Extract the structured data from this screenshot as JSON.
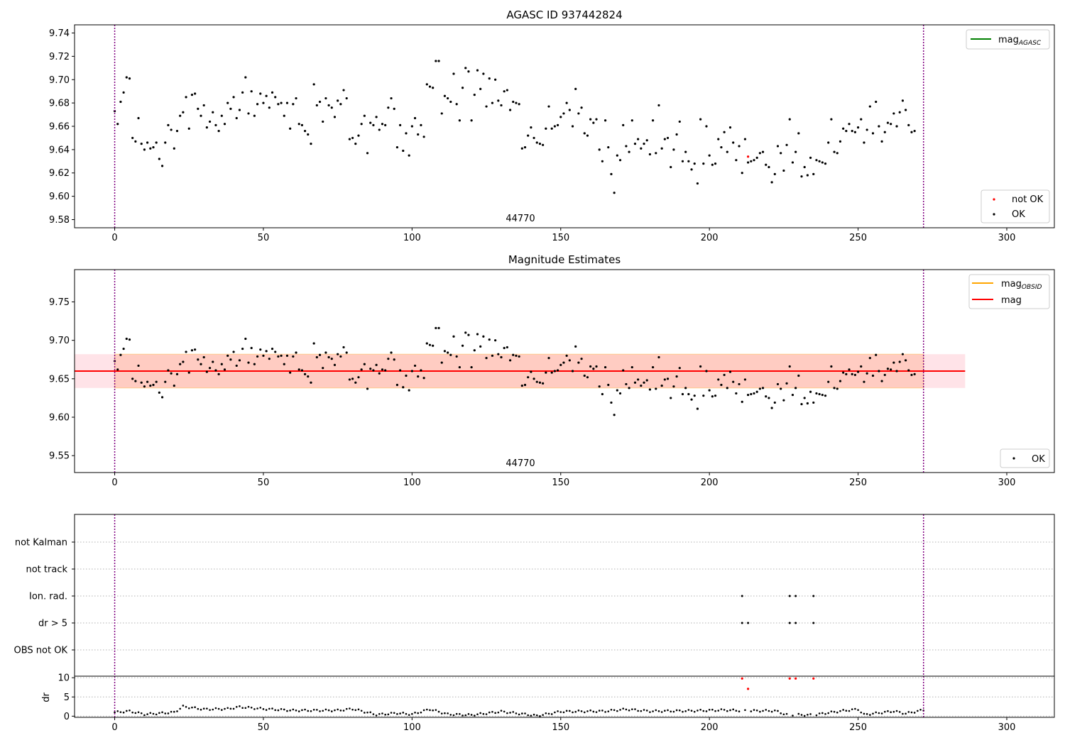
{
  "figure": {
    "panel1_title": "AGASC ID 937442824",
    "panel2_title": "Magnitude Estimates",
    "obsid_label": "44770",
    "panel3_ylabel": "dr",
    "legend_mag_agasc": "mag",
    "legend_mag_agasc_sub": "AGASC",
    "legend_not_ok": "not OK",
    "legend_ok": "OK",
    "legend_mag_obsid": "mag",
    "legend_mag_obsid_sub": "OBSID",
    "legend_mag": "mag",
    "legend_ok2": "OK"
  },
  "colors": {
    "ok": "#000000",
    "not_ok": "#ff0000",
    "mag_agasc": "#008000",
    "mag_obsid": "#ffa500",
    "mag": "#ff0000",
    "obsid_band": "#ffa07a",
    "mag_band": "#ffc0cb",
    "vline": "#800080"
  },
  "chart_data": [
    {
      "type": "scatter",
      "title": "AGASC ID 937442824",
      "xlim": [
        -13.5,
        316
      ],
      "ylim": [
        9.573,
        9.747
      ],
      "xticks": [
        0,
        50,
        100,
        150,
        200,
        250,
        300
      ],
      "yticks": [
        9.58,
        9.6,
        9.62,
        9.64,
        9.66,
        9.68,
        9.7,
        9.72,
        9.74
      ],
      "vlines": [
        0,
        272
      ],
      "annotation": {
        "text": "44770",
        "x": 136
      },
      "series": [
        {
          "name": "OK",
          "y": [
            9.673,
            9.662,
            9.681,
            9.689,
            9.702,
            9.701,
            9.65,
            9.647,
            9.667,
            9.645,
            9.64,
            9.646,
            9.641,
            9.642,
            9.646,
            9.632,
            9.626,
            9.646,
            9.661,
            9.657,
            9.641,
            9.656,
            9.669,
            9.672,
            9.685,
            9.658,
            9.687,
            9.688,
            9.675,
            9.669,
            9.678,
            9.659,
            9.664,
            9.672,
            9.661,
            9.656,
            9.669,
            9.662,
            9.68,
            9.675,
            9.685,
            9.667,
            9.674,
            9.689,
            9.702,
            9.671,
            9.69,
            9.669,
            9.679,
            9.688,
            9.68,
            9.686,
            9.676,
            9.689,
            9.685,
            9.679,
            9.68,
            9.669,
            9.68,
            9.658,
            9.679,
            9.684,
            9.662,
            9.661,
            9.656,
            9.653,
            9.645,
            9.696,
            9.678,
            9.681,
            9.664,
            9.684,
            9.678,
            9.676,
            9.668,
            9.682,
            9.679,
            9.691,
            9.684,
            9.649,
            9.65,
            9.645,
            9.652,
            9.662,
            9.669,
            9.637,
            9.663,
            9.661,
            9.668,
            9.657,
            9.662,
            9.661,
            9.676,
            9.684,
            9.675,
            9.642,
            9.661,
            9.639,
            9.654,
            9.635,
            9.66,
            9.667,
            9.653,
            9.661,
            9.651,
            9.696,
            9.694,
            9.693,
            9.716,
            9.716,
            9.671,
            9.686,
            9.684,
            9.681,
            9.705,
            9.679,
            9.665,
            9.693,
            9.71,
            9.707,
            9.665,
            9.687,
            9.708,
            9.692,
            9.705,
            9.677,
            9.701,
            9.68,
            9.7,
            9.682,
            9.678,
            9.69,
            9.691,
            9.674,
            9.681,
            9.68,
            9.679,
            9.641,
            9.642,
            9.652,
            9.659,
            9.65,
            9.646,
            9.645,
            9.644,
            9.658,
            9.677,
            9.658,
            9.66,
            9.661,
            9.668,
            9.671,
            9.68,
            9.674,
            9.66,
            9.692,
            9.671,
            9.676,
            9.654,
            9.652,
            9.666,
            9.663,
            9.666,
            9.64,
            9.63,
            9.665,
            9.642,
            9.619,
            9.603,
            9.635,
            9.631,
            9.661,
            9.643,
            9.638,
            9.665,
            9.645,
            9.649,
            9.641,
            9.645,
            9.648,
            9.636,
            9.665,
            9.637,
            9.678,
            9.641,
            9.649,
            9.65,
            9.625,
            9.64,
            9.653,
            9.664,
            9.63,
            9.638,
            9.63,
            9.623,
            9.628,
            9.611,
            9.666,
            9.628,
            9.66,
            9.635,
            9.627,
            9.628,
            9.649,
            9.642,
            9.655,
            9.638,
            9.659,
            9.646,
            9.631,
            9.643,
            9.62,
            9.649,
            9.629,
            9.63,
            9.631,
            9.633,
            9.637,
            9.638,
            9.627,
            9.625,
            9.612,
            9.619,
            9.643,
            9.637,
            9.622,
            9.644,
            9.666,
            9.629,
            9.638,
            9.654,
            9.617,
            9.625,
            9.618,
            9.633,
            9.619,
            9.631,
            9.63,
            9.629,
            9.628,
            9.646,
            9.666,
            9.638,
            9.637,
            9.647,
            9.658,
            9.656,
            9.662,
            9.656,
            9.655,
            9.659,
            9.666,
            9.646,
            9.657,
            9.677,
            9.654,
            9.681,
            9.66,
            9.647,
            9.655,
            9.663,
            9.662,
            9.671,
            9.66,
            9.672,
            9.682,
            9.674,
            9.661,
            9.655,
            9.656
          ]
        },
        {
          "name": "not OK",
          "x": [
            213
          ],
          "y": [
            9.634
          ]
        }
      ],
      "legend": [
        {
          "label": "mag_AGASC",
          "location": "upper right"
        },
        {
          "labels": [
            "not OK",
            "OK"
          ],
          "location": "lower right"
        }
      ]
    },
    {
      "type": "scatter",
      "title": "Magnitude Estimates",
      "xlim": [
        -13.5,
        316
      ],
      "ylim": [
        9.528,
        9.792
      ],
      "xticks": [
        0,
        50,
        100,
        150,
        200,
        250,
        300
      ],
      "yticks": [
        9.55,
        9.6,
        9.65,
        9.7,
        9.75
      ],
      "vlines": [
        0,
        272
      ],
      "annotation": {
        "text": "44770",
        "x": 136
      },
      "mag": 9.66,
      "mag_band": [
        9.638,
        9.682
      ],
      "mag_band_x": [
        -13.5,
        286
      ],
      "obsid_band": [
        9.638,
        9.682
      ],
      "obsid_band_x": [
        0,
        272
      ],
      "series": [
        {
          "name": "OK",
          "same_as": "panel1_ok"
        }
      ],
      "legend": [
        {
          "labels": [
            "mag_OBSID",
            "mag"
          ],
          "location": "upper right"
        },
        {
          "labels": [
            "OK"
          ],
          "location": "lower right"
        }
      ]
    },
    {
      "type": "scatter",
      "xlim": [
        -13.5,
        316
      ],
      "xticks": [
        0,
        50,
        100,
        150,
        200,
        250,
        300
      ],
      "flag_categories": [
        "not Kalman",
        "not track",
        "Ion. rad.",
        "dr > 5",
        "OBS not OK"
      ],
      "flags": {
        "Ion. rad.": [
          211,
          227,
          229,
          235
        ],
        "dr > 5": [
          211,
          213,
          227,
          229,
          235
        ]
      },
      "vlines": [
        0,
        272
      ],
      "dr": {
        "ylabel": "dr",
        "yticks": [
          0,
          5,
          10
        ],
        "ylim": [
          -0.3,
          10.4
        ],
        "outliers": [
          {
            "x": 211,
            "y": 9.8
          },
          {
            "x": 213,
            "y": 7.1
          },
          {
            "x": 227,
            "y": 9.8
          },
          {
            "x": 229,
            "y": 9.8
          },
          {
            "x": 235,
            "y": 9.8
          }
        ],
        "profile": [
          [
            0,
            1.0
          ],
          [
            5,
            1.3
          ],
          [
            10,
            0.5
          ],
          [
            20,
            1.0
          ],
          [
            23,
            2.5
          ],
          [
            30,
            1.8
          ],
          [
            38,
            1.9
          ],
          [
            42,
            2.4
          ],
          [
            50,
            1.9
          ],
          [
            60,
            1.5
          ],
          [
            75,
            1.5
          ],
          [
            80,
            1.9
          ],
          [
            88,
            0.4
          ],
          [
            95,
            0.8
          ],
          [
            100,
            0.5
          ],
          [
            106,
            1.8
          ],
          [
            112,
            0.5
          ],
          [
            120,
            0.3
          ],
          [
            130,
            1.2
          ],
          [
            137,
            0.6
          ],
          [
            142,
            0.1
          ],
          [
            150,
            1.2
          ],
          [
            165,
            1.3
          ],
          [
            172,
            1.8
          ],
          [
            180,
            1.3
          ],
          [
            195,
            1.4
          ],
          [
            205,
            1.6
          ],
          [
            212,
            1.4
          ],
          [
            222,
            1.4
          ],
          [
            226,
            0.4
          ],
          [
            235,
            0.3
          ],
          [
            240,
            0.9
          ],
          [
            246,
            1.5
          ],
          [
            250,
            1.8
          ],
          [
            252,
            0.4
          ],
          [
            262,
            1.3
          ],
          [
            266,
            0.7
          ],
          [
            272,
            1.6
          ]
        ]
      }
    }
  ]
}
